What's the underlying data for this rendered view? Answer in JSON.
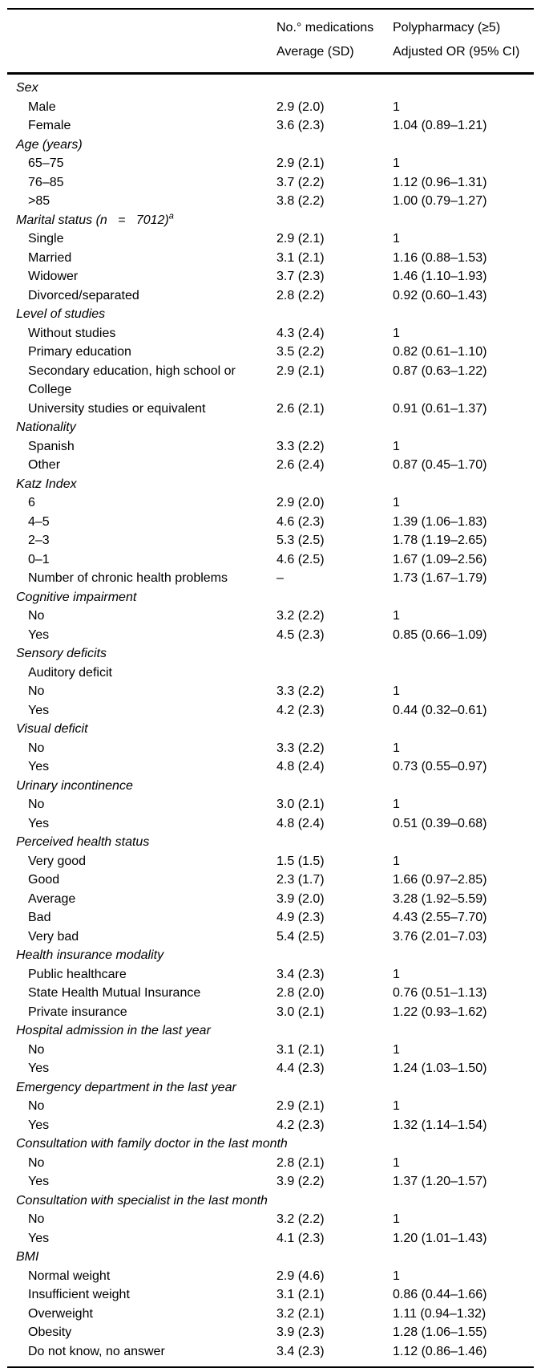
{
  "table": {
    "header": {
      "col2_line1": "No.° medications",
      "col2_line2": "Average (SD)",
      "col3_line1": "Polypharmacy (≥5)",
      "col3_line2": "Adjusted OR (95% CI)"
    },
    "rows": [
      {
        "type": "section",
        "label": "Sex"
      },
      {
        "type": "item",
        "label": "Male",
        "avg": "2.9 (2.0)",
        "or": "1"
      },
      {
        "type": "item",
        "label": "Female",
        "avg": "3.6 (2.3)",
        "or": "1.04 (0.89–1.21)"
      },
      {
        "type": "section",
        "label": "Age (years)"
      },
      {
        "type": "item",
        "label": "65–75",
        "avg": "2.9 (2.1)",
        "or": "1"
      },
      {
        "type": "item",
        "label": "76–85",
        "avg": "3.7 (2.2)",
        "or": "1.12 (0.96–1.31)"
      },
      {
        "type": "item",
        "label": ">85",
        "avg": "3.8 (2.2)",
        "or": "1.00 (0.79–1.27)"
      },
      {
        "type": "section",
        "label": "Marital status (n   =   7012)",
        "sup": "a"
      },
      {
        "type": "item",
        "label": "Single",
        "avg": "2.9 (2.1)",
        "or": "1"
      },
      {
        "type": "item",
        "label": "Married",
        "avg": "3.1 (2.1)",
        "or": "1.16 (0.88–1.53)"
      },
      {
        "type": "item",
        "label": "Widower",
        "avg": "3.7 (2.3)",
        "or": "1.46 (1.10–1.93)"
      },
      {
        "type": "item",
        "label": "Divorced/separated",
        "avg": "2.8 (2.2)",
        "or": "0.92 (0.60–1.43)"
      },
      {
        "type": "section",
        "label": "Level of studies"
      },
      {
        "type": "item",
        "label": "Without studies",
        "avg": "4.3 (2.4)",
        "or": "1"
      },
      {
        "type": "item",
        "label": "Primary education",
        "avg": "3.5 (2.2)",
        "or": "0.82 (0.61–1.10)"
      },
      {
        "type": "item",
        "label": "Secondary education, high school or\nCollege",
        "avg": "2.9 (2.1)",
        "or": "0.87 (0.63–1.22)"
      },
      {
        "type": "item",
        "label": "University studies or equivalent",
        "avg": "2.6 (2.1)",
        "or": "0.91 (0.61–1.37)"
      },
      {
        "type": "section",
        "label": "Nationality"
      },
      {
        "type": "item",
        "label": "Spanish",
        "avg": "3.3 (2.2)",
        "or": "1"
      },
      {
        "type": "item",
        "label": "Other",
        "avg": "2.6 (2.4)",
        "or": "0.87 (0.45–1.70)"
      },
      {
        "type": "section",
        "label": "Katz Index"
      },
      {
        "type": "item",
        "label": "6",
        "avg": "2.9 (2.0)",
        "or": "1"
      },
      {
        "type": "item",
        "label": "4–5",
        "avg": "4.6 (2.3)",
        "or": "1.39 (1.06–1.83)"
      },
      {
        "type": "item",
        "label": "2–3",
        "avg": "5.3 (2.5)",
        "or": "1.78 (1.19–2.65)"
      },
      {
        "type": "item",
        "label": "0–1",
        "avg": "4.6 (2.5)",
        "or": "1.67 (1.09–2.56)"
      },
      {
        "type": "item",
        "label": "Number of chronic health problems",
        "avg": "–",
        "or": "1.73 (1.67–1.79)"
      },
      {
        "type": "section",
        "label": "Cognitive impairment"
      },
      {
        "type": "item",
        "label": "No",
        "avg": "3.2 (2.2)",
        "or": "1"
      },
      {
        "type": "item",
        "label": "Yes",
        "avg": "4.5 (2.3)",
        "or": "0.85 (0.66–1.09)"
      },
      {
        "type": "section",
        "label": "Sensory deficits"
      },
      {
        "type": "item",
        "label": "Auditory deficit",
        "avg": "",
        "or": ""
      },
      {
        "type": "item",
        "label": "No",
        "avg": "3.3 (2.2)",
        "or": "1"
      },
      {
        "type": "item",
        "label": "Yes",
        "avg": "4.2 (2.3)",
        "or": "0.44 (0.32–0.61)"
      },
      {
        "type": "section",
        "label": "Visual deficit"
      },
      {
        "type": "item",
        "label": "No",
        "avg": "3.3 (2.2)",
        "or": "1"
      },
      {
        "type": "item",
        "label": "Yes",
        "avg": "4.8 (2.4)",
        "or": "0.73 (0.55–0.97)"
      },
      {
        "type": "section",
        "label": "Urinary incontinence"
      },
      {
        "type": "item",
        "label": "No",
        "avg": "3.0 (2.1)",
        "or": "1"
      },
      {
        "type": "item",
        "label": "Yes",
        "avg": "4.8 (2.4)",
        "or": "0.51 (0.39–0.68)"
      },
      {
        "type": "section",
        "label": "Perceived health status"
      },
      {
        "type": "item",
        "label": "Very good",
        "avg": "1.5 (1.5)",
        "or": "1"
      },
      {
        "type": "item",
        "label": "Good",
        "avg": "2.3 (1.7)",
        "or": "1.66 (0.97–2.85)"
      },
      {
        "type": "item",
        "label": "Average",
        "avg": "3.9 (2.0)",
        "or": "3.28 (1.92–5.59)"
      },
      {
        "type": "item",
        "label": "Bad",
        "avg": "4.9 (2.3)",
        "or": "4.43 (2.55–7.70)"
      },
      {
        "type": "item",
        "label": "Very bad",
        "avg": "5.4 (2.5)",
        "or": "3.76 (2.01–7.03)"
      },
      {
        "type": "section",
        "label": "Health insurance modality"
      },
      {
        "type": "item",
        "label": "Public healthcare",
        "avg": "3.4 (2.3)",
        "or": "1"
      },
      {
        "type": "item",
        "label": "State Health Mutual Insurance",
        "avg": "2.8 (2.0)",
        "or": "0.76 (0.51–1.13)"
      },
      {
        "type": "item",
        "label": "Private insurance",
        "avg": "3.0 (2.1)",
        "or": "1.22 (0.93–1.62)"
      },
      {
        "type": "section",
        "label": "Hospital admission in the last year"
      },
      {
        "type": "item",
        "label": "No",
        "avg": "3.1 (2.1)",
        "or": "1"
      },
      {
        "type": "item",
        "label": "Yes",
        "avg": "4.4 (2.3)",
        "or": "1.24 (1.03–1.50)"
      },
      {
        "type": "section",
        "label": "Emergency department in the last year"
      },
      {
        "type": "item",
        "label": "No",
        "avg": "2.9 (2.1)",
        "or": "1"
      },
      {
        "type": "item",
        "label": "Yes",
        "avg": "4.2 (2.3)",
        "or": "1.32 (1.14–1.54)"
      },
      {
        "type": "section",
        "label": "Consultation with family doctor in the last month"
      },
      {
        "type": "item",
        "label": "No",
        "avg": "2.8 (2.1)",
        "or": "1"
      },
      {
        "type": "item",
        "label": "Yes",
        "avg": "3.9 (2.2)",
        "or": "1.37 (1.20–1.57)"
      },
      {
        "type": "section",
        "label": "Consultation with specialist in the last month"
      },
      {
        "type": "item",
        "label": "No",
        "avg": "3.2 (2.2)",
        "or": "1"
      },
      {
        "type": "item",
        "label": "Yes",
        "avg": "4.1 (2.3)",
        "or": "1.20 (1.01–1.43)"
      },
      {
        "type": "section",
        "label": "BMI"
      },
      {
        "type": "item",
        "label": "Normal weight",
        "avg": "2.9 (4.6)",
        "or": "1"
      },
      {
        "type": "item",
        "label": "Insufficient weight",
        "avg": "3.1 (2.1)",
        "or": "0.86 (0.44–1.66)"
      },
      {
        "type": "item",
        "label": "Overweight",
        "avg": "3.2 (2.1)",
        "or": "1.11 (0.94–1.32)"
      },
      {
        "type": "item",
        "label": "Obesity",
        "avg": "3.9 (2.3)",
        "or": "1.28 (1.06–1.55)"
      },
      {
        "type": "item",
        "label": "Do not know, no answer",
        "avg": "3.4 (2.3)",
        "or": "1.12 (0.86–1.46)"
      }
    ]
  }
}
